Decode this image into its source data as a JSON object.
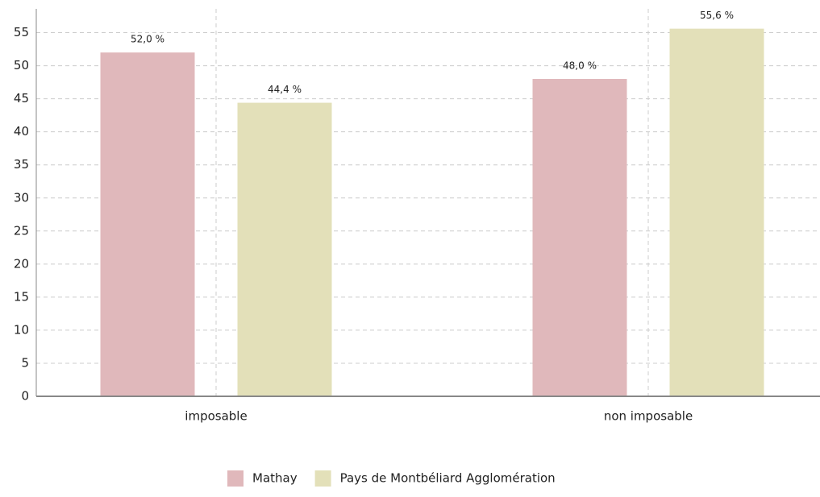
{
  "chart_data": {
    "type": "bar",
    "categories": [
      "imposable",
      "non imposable"
    ],
    "series": [
      {
        "name": "Mathay",
        "color": "#e0b8bb",
        "values": [
          52.0,
          48.0
        ],
        "value_labels": [
          "52,0 %",
          "48,0 %"
        ]
      },
      {
        "name": "Pays de Montbéliard Agglomération",
        "color": "#e3e0b9",
        "values": [
          44.4,
          55.6
        ],
        "value_labels": [
          "44,4 %",
          "55,6 %"
        ]
      }
    ],
    "ylim": [
      0,
      58.6
    ],
    "yticks": [
      0,
      5,
      10,
      15,
      20,
      25,
      30,
      35,
      40,
      45,
      50,
      55
    ],
    "grid": true
  }
}
